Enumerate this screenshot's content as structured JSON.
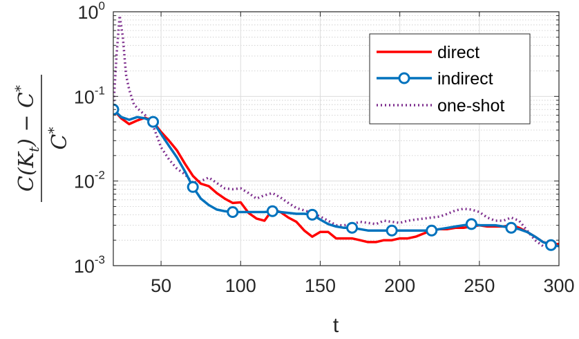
{
  "chart_data": {
    "type": "line",
    "title": "",
    "xlabel": "t",
    "ylabel": {
      "numerator": "C(K",
      "numerator_sub": "t",
      "numerator_rest": ") − C",
      "numerator_sup": "*",
      "denominator": "C",
      "denominator_sup": "*"
    },
    "xlim": [
      20,
      300
    ],
    "ylim": [
      0.001,
      1
    ],
    "yscale": "log",
    "grid": true,
    "minor_grid": true,
    "legend_position": "top-right",
    "xticks": [
      {
        "value": 50,
        "label": "50"
      },
      {
        "value": 100,
        "label": "100"
      },
      {
        "value": 150,
        "label": "150"
      },
      {
        "value": 200,
        "label": "200"
      },
      {
        "value": 250,
        "label": "250"
      },
      {
        "value": 300,
        "label": "300"
      }
    ],
    "yticks": [
      {
        "value": 0.001,
        "base": "10",
        "exp": "-3"
      },
      {
        "value": 0.01,
        "base": "10",
        "exp": "-2"
      },
      {
        "value": 0.1,
        "base": "10",
        "exp": "-1"
      },
      {
        "value": 1,
        "base": "10",
        "exp": "0"
      }
    ],
    "series": [
      {
        "name": "direct",
        "color": "#ff0000",
        "style": "solid",
        "marker": "none",
        "x": [
          20,
          25,
          30,
          35,
          40,
          45,
          50,
          55,
          60,
          65,
          70,
          75,
          80,
          85,
          90,
          95,
          100,
          105,
          110,
          115,
          120,
          125,
          130,
          135,
          140,
          145,
          150,
          155,
          160,
          165,
          170,
          175,
          180,
          185,
          190,
          195,
          200,
          205,
          210,
          215,
          220,
          225,
          230,
          235,
          240,
          245,
          250,
          255,
          260,
          265,
          270,
          275,
          280,
          285,
          290,
          295,
          300
        ],
        "y": [
          0.07,
          0.055,
          0.047,
          0.052,
          0.056,
          0.05,
          0.038,
          0.03,
          0.023,
          0.016,
          0.0115,
          0.0093,
          0.0087,
          0.0072,
          0.0062,
          0.0055,
          0.0056,
          0.0042,
          0.0036,
          0.0034,
          0.0046,
          0.0043,
          0.0037,
          0.0033,
          0.0026,
          0.0022,
          0.0025,
          0.0025,
          0.0021,
          0.0021,
          0.0021,
          0.002,
          0.0019,
          0.0019,
          0.002,
          0.002,
          0.0021,
          0.0021,
          0.0022,
          0.0024,
          0.0026,
          0.0027,
          0.0027,
          0.0028,
          0.0028,
          0.0029,
          0.003,
          0.0029,
          0.0029,
          0.0029,
          0.003,
          0.0028,
          0.0025,
          0.0022,
          0.0019,
          0.0018,
          0.0018
        ]
      },
      {
        "name": "indirect",
        "color": "#0072bd",
        "style": "solid",
        "marker": "circle",
        "marker_x": [
          20,
          45,
          70,
          95,
          120,
          145,
          170,
          195,
          220,
          245,
          270,
          295
        ],
        "x": [
          20,
          25,
          30,
          35,
          40,
          45,
          50,
          55,
          60,
          65,
          70,
          75,
          80,
          85,
          90,
          95,
          100,
          105,
          110,
          115,
          120,
          125,
          130,
          135,
          140,
          145,
          150,
          155,
          160,
          165,
          170,
          175,
          180,
          185,
          190,
          195,
          200,
          205,
          210,
          215,
          220,
          225,
          230,
          235,
          240,
          245,
          250,
          255,
          260,
          265,
          270,
          275,
          280,
          285,
          290,
          295,
          300
        ],
        "y": [
          0.07,
          0.057,
          0.053,
          0.057,
          0.055,
          0.05,
          0.036,
          0.026,
          0.019,
          0.013,
          0.0085,
          0.0062,
          0.0052,
          0.0046,
          0.0044,
          0.0043,
          0.0043,
          0.0043,
          0.0043,
          0.0043,
          0.0044,
          0.0043,
          0.0042,
          0.0041,
          0.0041,
          0.004,
          0.0035,
          0.0031,
          0.0029,
          0.0028,
          0.0028,
          0.0027,
          0.0026,
          0.0026,
          0.0026,
          0.0026,
          0.0026,
          0.0026,
          0.0026,
          0.0026,
          0.0026,
          0.0027,
          0.0028,
          0.0029,
          0.003,
          0.0031,
          0.003,
          0.003,
          0.003,
          0.0029,
          0.0028,
          0.0027,
          0.0025,
          0.0022,
          0.0019,
          0.00175,
          0.0017
        ]
      },
      {
        "name": "one-shot",
        "color": "#7e2f8e",
        "style": "dotted",
        "marker": "none",
        "x": [
          20,
          22,
          24,
          26,
          28,
          30,
          33,
          36,
          40,
          45,
          50,
          55,
          60,
          65,
          70,
          75,
          80,
          85,
          90,
          95,
          100,
          105,
          110,
          115,
          120,
          125,
          130,
          135,
          140,
          145,
          150,
          155,
          160,
          165,
          170,
          175,
          180,
          185,
          190,
          195,
          200,
          205,
          210,
          215,
          220,
          225,
          230,
          235,
          240,
          245,
          250,
          255,
          260,
          265,
          270,
          275,
          280,
          285,
          290,
          295,
          300
        ],
        "y": [
          0.07,
          0.3,
          0.9,
          0.5,
          0.18,
          0.12,
          0.08,
          0.07,
          0.06,
          0.045,
          0.025,
          0.018,
          0.014,
          0.012,
          0.0095,
          0.01,
          0.011,
          0.0095,
          0.0082,
          0.008,
          0.0082,
          0.0072,
          0.0062,
          0.0068,
          0.0072,
          0.0064,
          0.0055,
          0.0048,
          0.0045,
          0.0042,
          0.0038,
          0.0034,
          0.003,
          0.003,
          0.0031,
          0.0033,
          0.0032,
          0.0031,
          0.0034,
          0.0033,
          0.0032,
          0.0034,
          0.0035,
          0.0036,
          0.0037,
          0.0038,
          0.0041,
          0.0045,
          0.0047,
          0.0046,
          0.0043,
          0.0037,
          0.0034,
          0.0034,
          0.0037,
          0.0034,
          0.0026,
          0.002,
          0.0017,
          0.00175,
          0.0017
        ]
      }
    ]
  }
}
